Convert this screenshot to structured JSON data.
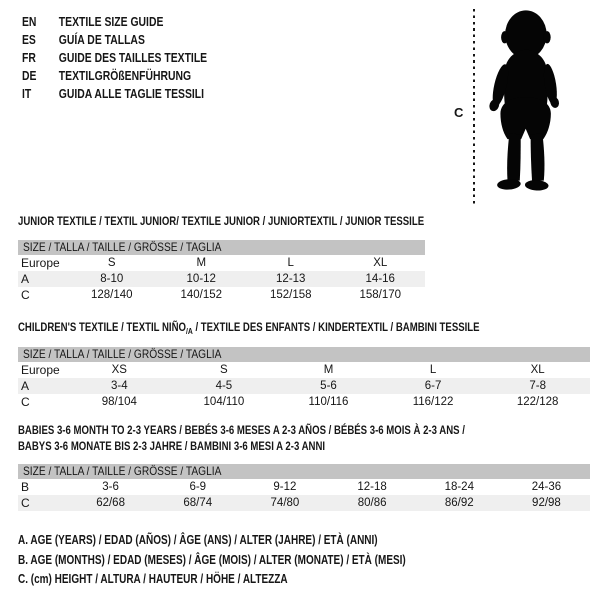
{
  "colors": {
    "text": "#161616",
    "bar": "#c3c3c3",
    "stripe": "#efefef",
    "silhouette": "#050505"
  },
  "languages": [
    {
      "code": "EN",
      "title": "TEXTILE SIZE GUIDE"
    },
    {
      "code": "ES",
      "title": "GUÍA DE TALLAS"
    },
    {
      "code": "FR",
      "title": "GUIDE DES TAILLES TEXTILE"
    },
    {
      "code": "DE",
      "title": "TEXTILGRÖßENFÜHRUNG"
    },
    {
      "code": "IT",
      "title": "GUIDA ALLE TAGLIE TESSILI"
    }
  ],
  "figure": {
    "icon": "baby-silhouette",
    "height_label": "C"
  },
  "tables": [
    {
      "title": "JUNIOR TEXTILE / TEXTIL JUNIOR/ TEXTILE JUNIOR / JUNIORTEXTIL / JUNIOR TESSILE",
      "header": "SIZE / TALLA / TAILLE / GRÖSSE / TAGLIA",
      "rows": [
        {
          "label": "Europe",
          "cells": [
            "S",
            "M",
            "L",
            "XL"
          ]
        },
        {
          "label": "A",
          "cells": [
            "8-10",
            "10-12",
            "12-13",
            "14-16"
          ]
        },
        {
          "label": "C",
          "cells": [
            "128/140",
            "140/152",
            "152/158",
            "158/170"
          ]
        }
      ]
    },
    {
      "title_pre": "CHILDREN'S TEXTILE / TEXTIL NIÑO",
      "title_sub": "/A",
      "title_post": " / TEXTILE DES ENFANTS / KINDERTEXTIL / BAMBINI TESSILE",
      "header": "SIZE / TALLA / TAILLE / GRÖSSE / TAGLIA",
      "rows": [
        {
          "label": "Europe",
          "cells": [
            "XS",
            "S",
            "M",
            "L",
            "XL"
          ]
        },
        {
          "label": "A",
          "cells": [
            "3-4",
            "4-5",
            "5-6",
            "6-7",
            "7-8"
          ]
        },
        {
          "label": "C",
          "cells": [
            "98/104",
            "104/110",
            "110/116",
            "116/122",
            "122/128"
          ]
        }
      ]
    },
    {
      "title_line1": "BABIES 3-6 MONTH TO 2-3 YEARS / BEBÉS 3-6 MESES A 2-3 AÑOS / BÉBÉS 3-6 MOIS À 2-3 ANS /",
      "title_line2": "BABYS 3-6 MONATE BIS 2-3 JAHRE / BAMBINI 3-6 MESI A 2-3 ANNI",
      "header": "SIZE / TALLA / TAILLE / GRÖSSE / TAGLIA",
      "rows": [
        {
          "label": "B",
          "cells": [
            "3-6",
            "6-9",
            "9-12",
            "12-18",
            "18-24",
            "24-36"
          ]
        },
        {
          "label": "C",
          "cells": [
            "62/68",
            "68/74",
            "74/80",
            "80/86",
            "86/92",
            "92/98"
          ]
        }
      ]
    }
  ],
  "footnotes": [
    "A. AGE (YEARS) / EDAD (AÑOS) / ÂGE (ANS) / ALTER (JAHRE) / ETÀ (ANNI)",
    "B. AGE (MONTHS) / EDAD (MESES) / ÂGE (MOIS) / ALTER (MONATE) / ETÀ (MESI)",
    "C. (cm) HEIGHT / ALTURA / HAUTEUR / HÖHE / ALTEZZA"
  ]
}
